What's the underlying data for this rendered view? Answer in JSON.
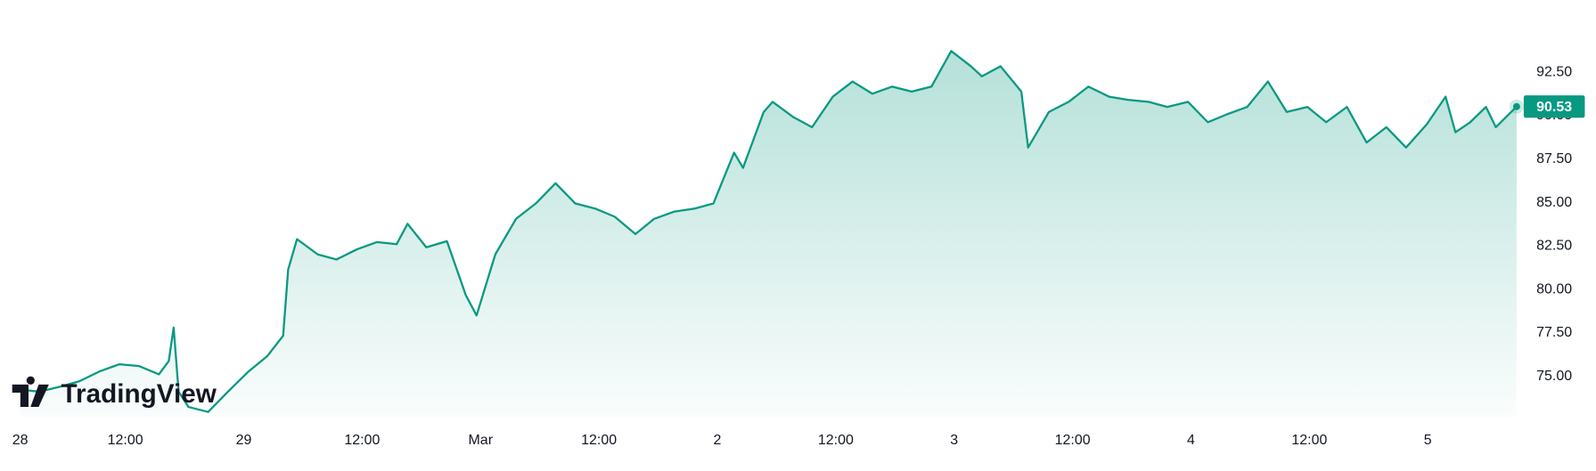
{
  "chart_data": {
    "type": "area",
    "color": "#089981",
    "watermark": "TradingView",
    "last_price": 90.53,
    "x": [
      1.3,
      3.3,
      5.4,
      7.3,
      9.4,
      11.4,
      13.4,
      15.4,
      16.4,
      16.9,
      17.4,
      18.4,
      20.4,
      22.4,
      24.5,
      26.4,
      28.0,
      28.5,
      29.4,
      31.5,
      33.4,
      35.5,
      37.5,
      39.5,
      40.6,
      42.5,
      44.6,
      46.5,
      47.6,
      49.5,
      51.6,
      53.6,
      55.6,
      57.6,
      59.6,
      61.6,
      63.7,
      65.6,
      67.6,
      69.7,
      71.6,
      73.7,
      74.6,
      76.7,
      77.6,
      79.7,
      81.6,
      83.7,
      85.7,
      87.7,
      89.7,
      91.7,
      93.7,
      95.7,
      97.7,
      98.8,
      100.7,
      102.8,
      103.5,
      105.6,
      107.6,
      109.6,
      111.7,
      113.6,
      115.7,
      117.6,
      119.7,
      121.7,
      123.7,
      125.7,
      127.8,
      129.7,
      131.8,
      133.7,
      135.8,
      137.8,
      139.8,
      141.8,
      143.9,
      145.8,
      146.8,
      148.3,
      149.9,
      150.9,
      153.0
    ],
    "values": [
      74.24,
      74.12,
      74.41,
      74.71,
      75.29,
      75.7,
      75.59,
      75.12,
      75.88,
      77.81,
      74.12,
      73.24,
      72.95,
      74.12,
      75.29,
      76.17,
      77.34,
      81.15,
      82.9,
      82.02,
      81.73,
      82.32,
      82.73,
      82.61,
      83.78,
      82.43,
      82.78,
      79.68,
      78.51,
      82.02,
      84.07,
      84.95,
      86.12,
      84.95,
      84.66,
      84.19,
      83.19,
      84.07,
      84.48,
      84.66,
      84.95,
      87.88,
      87.0,
      90.22,
      90.8,
      89.92,
      89.34,
      91.1,
      91.97,
      91.27,
      91.68,
      91.39,
      91.68,
      93.73,
      92.85,
      92.27,
      92.85,
      91.39,
      88.17,
      90.22,
      90.8,
      91.68,
      91.1,
      90.92,
      90.8,
      90.51,
      90.8,
      89.63,
      90.1,
      90.51,
      91.97,
      90.22,
      90.51,
      89.63,
      90.51,
      88.46,
      89.34,
      88.17,
      89.51,
      91.1,
      89.05,
      89.63,
      90.51,
      89.34,
      90.53
    ],
    "xlim": [
      -0.7,
      153
    ],
    "ylim": [
      72.66,
      96.66
    ],
    "xticks": [
      {
        "value": 0,
        "label": "28"
      },
      {
        "value": 12,
        "label": "12:00"
      },
      {
        "value": 24,
        "label": "29"
      },
      {
        "value": 36,
        "label": "12:00"
      },
      {
        "value": 48,
        "label": "Mar"
      },
      {
        "value": 60,
        "label": "12:00"
      },
      {
        "value": 72,
        "label": "2"
      },
      {
        "value": 84,
        "label": "12:00"
      },
      {
        "value": 96,
        "label": "3"
      },
      {
        "value": 108,
        "label": "12:00"
      },
      {
        "value": 120,
        "label": "4"
      },
      {
        "value": 132,
        "label": "12:00"
      },
      {
        "value": 144,
        "label": "5"
      }
    ],
    "yticks": [
      {
        "value": 92.5,
        "label": "92.50"
      },
      {
        "value": 90,
        "label": "90.00"
      },
      {
        "value": 87.5,
        "label": "87.50"
      },
      {
        "value": 85,
        "label": "85.00"
      },
      {
        "value": 82.5,
        "label": "82.50"
      },
      {
        "value": 80,
        "label": "80.00"
      },
      {
        "value": 77.5,
        "label": "77.50"
      },
      {
        "value": 75,
        "label": "75.00"
      }
    ]
  }
}
